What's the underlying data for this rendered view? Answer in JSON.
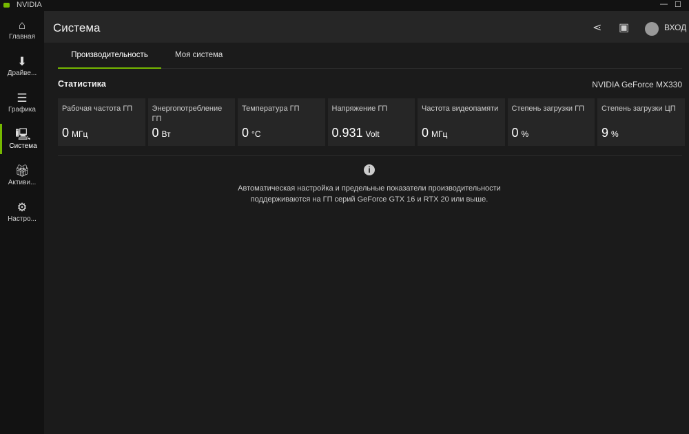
{
  "app": {
    "title": "NVIDIA",
    "accent": "#76b900"
  },
  "sidebar": {
    "items": [
      {
        "label": "Главная",
        "icon": "home-icon"
      },
      {
        "label": "Драйве...",
        "icon": "download-icon"
      },
      {
        "label": "Графика",
        "icon": "sliders-icon"
      },
      {
        "label": "Система",
        "icon": "system-icon",
        "active": true
      },
      {
        "label": "Активи...",
        "icon": "gift-icon"
      },
      {
        "label": "Настро...",
        "icon": "gear-icon"
      }
    ]
  },
  "header": {
    "title": "Система",
    "login": "ВХОД"
  },
  "tabs": [
    {
      "label": "Производительность",
      "active": true
    },
    {
      "label": "Моя система"
    }
  ],
  "stats": {
    "title": "Статистика",
    "gpu": "NVIDIA GeForce MX330",
    "cards": [
      {
        "label": "Рабочая частота ГП",
        "value": "0",
        "unit": "МГц"
      },
      {
        "label": "Энергопотребление ГП",
        "value": "0",
        "unit": "Вт"
      },
      {
        "label": "Температура ГП",
        "value": "0",
        "unit": "°C"
      },
      {
        "label": "Напряжение ГП",
        "value": "0.931",
        "unit": "Volt"
      },
      {
        "label": "Частота видеопамяти",
        "value": "0",
        "unit": "МГц"
      },
      {
        "label": "Степень загрузки ГП",
        "value": "0",
        "unit": "%"
      },
      {
        "label": "Степень загрузки ЦП",
        "value": "9",
        "unit": "%"
      }
    ]
  },
  "info": {
    "text": "Автоматическая настройка и предельные показатели производительности поддерживаются на ГП серий GeForce GTX 16 и RTX 20 или выше."
  }
}
